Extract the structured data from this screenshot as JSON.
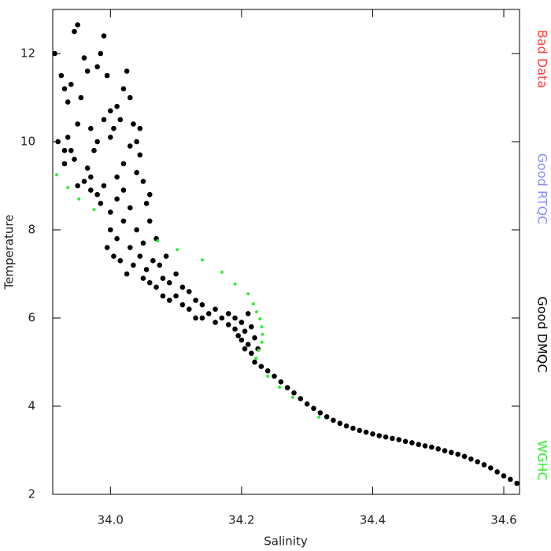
{
  "chart_data": {
    "type": "scatter",
    "x_label": "Salinity",
    "y_label": "Temperature",
    "xlim": [
      33.912,
      34.624
    ],
    "ylim": [
      2,
      13
    ],
    "xticks": [
      {
        "value": 34,
        "label": "34.0"
      },
      34.2,
      34.4,
      34.6
    ],
    "yticks": [
      2,
      4,
      6,
      8,
      10,
      12
    ],
    "series": [
      {
        "name": "Bad Data",
        "color": "#ff4040",
        "x": [],
        "y": []
      },
      {
        "name": "Good RTQC",
        "color": "#8c8cff",
        "x": [],
        "y": []
      },
      {
        "name": "Good DMQC",
        "color": "#000000",
        "x": [
          33.915,
          33.925,
          33.93,
          33.935,
          33.94,
          33.945,
          33.95,
          33.94,
          33.935,
          33.93,
          33.945,
          33.95,
          33.955,
          33.96,
          33.965,
          33.97,
          33.96,
          33.95,
          33.965,
          33.975,
          33.98,
          33.985,
          33.99,
          33.995,
          34.0,
          34.005,
          34.01,
          34.015,
          34.02,
          34.025,
          34.03,
          34.035,
          34.03,
          34.02,
          34.01,
          33.99,
          33.98,
          33.97,
          33.985,
          34.0,
          34.01,
          34.02,
          34.03,
          34.04,
          34.045,
          34.05,
          34.055,
          34.06,
          34.0,
          33.99,
          33.98,
          34.04,
          34.045,
          33.97,
          33.93,
          33.92,
          34.0,
          34.01,
          34.02,
          34.03,
          34.04,
          34.05,
          34.06,
          34.07,
          34.065,
          34.055,
          34.045,
          34.035,
          34.025,
          34.015,
          34.005,
          33.995,
          34.075,
          34.085,
          34.08,
          34.07,
          34.06,
          34.05,
          34.09,
          34.1,
          34.11,
          34.1,
          34.09,
          34.08,
          34.12,
          34.13,
          34.12,
          34.11,
          34.14,
          34.15,
          34.14,
          34.13,
          34.16,
          34.17,
          34.16,
          34.18,
          34.19,
          34.18,
          34.2,
          34.21,
          34.205,
          34.2,
          34.21,
          34.215,
          34.205,
          34.195,
          34.19,
          34.215,
          34.22,
          34.225,
          34.22,
          34.23,
          34.24,
          34.25,
          34.26,
          34.27,
          34.28,
          34.29,
          34.3,
          34.31,
          34.32,
          34.33,
          34.34,
          34.35,
          34.36,
          34.37,
          34.38,
          34.39,
          34.4,
          34.41,
          34.42,
          34.43,
          34.44,
          34.45,
          34.46,
          34.47,
          34.48,
          34.49,
          34.5,
          34.51,
          34.52,
          34.53,
          34.54,
          34.55,
          34.56,
          34.57,
          34.58,
          34.59,
          34.6,
          34.61,
          34.62
        ],
        "y": [
          12.0,
          11.5,
          11.2,
          10.9,
          11.3,
          12.5,
          12.65,
          9.8,
          10.1,
          9.5,
          9.6,
          10.4,
          11.0,
          11.9,
          11.6,
          10.3,
          9.1,
          9.0,
          9.4,
          9.8,
          11.7,
          12.0,
          12.4,
          11.5,
          10.7,
          10.3,
          10.8,
          10.5,
          11.2,
          11.6,
          11.0,
          10.4,
          9.9,
          9.5,
          9.2,
          9.0,
          8.8,
          8.9,
          8.6,
          8.4,
          8.7,
          8.9,
          8.5,
          9.3,
          9.7,
          9.1,
          8.6,
          8.8,
          10.1,
          10.5,
          10.0,
          10.0,
          10.3,
          9.2,
          9.8,
          10.0,
          8.0,
          7.8,
          8.2,
          7.6,
          8.0,
          7.7,
          8.2,
          7.8,
          7.3,
          7.1,
          7.4,
          7.2,
          7.0,
          7.3,
          7.4,
          7.6,
          7.2,
          7.4,
          6.9,
          6.7,
          6.8,
          6.9,
          6.8,
          7.0,
          6.7,
          6.5,
          6.4,
          6.5,
          6.6,
          6.4,
          6.2,
          6.3,
          6.3,
          6.1,
          6.0,
          6.0,
          6.2,
          6.0,
          5.9,
          6.1,
          6.0,
          5.85,
          5.9,
          6.1,
          5.7,
          5.5,
          5.4,
          5.2,
          5.3,
          5.6,
          5.75,
          5.8,
          5.55,
          5.3,
          5.0,
          4.9,
          4.8,
          4.68,
          4.55,
          4.42,
          4.3,
          4.17,
          4.05,
          3.95,
          3.85,
          3.76,
          3.68,
          3.61,
          3.55,
          3.5,
          3.45,
          3.41,
          3.37,
          3.33,
          3.3,
          3.27,
          3.24,
          3.2,
          3.17,
          3.13,
          3.1,
          3.07,
          3.03,
          2.99,
          2.95,
          2.91,
          2.86,
          2.8,
          2.74,
          2.67,
          2.6,
          2.51,
          2.42,
          2.34,
          2.25
        ]
      },
      {
        "name": "WGHC",
        "color": "#33ee33",
        "x": [
          33.918,
          33.935,
          33.952,
          33.975,
          34.072,
          34.102,
          34.14,
          34.17,
          34.19,
          34.21,
          34.218,
          34.223,
          34.228,
          34.231,
          34.232,
          34.231,
          34.226,
          34.222,
          34.24,
          34.258,
          34.278,
          34.318
        ],
        "y": [
          9.25,
          8.96,
          8.7,
          8.46,
          7.75,
          7.55,
          7.32,
          7.04,
          6.77,
          6.55,
          6.32,
          6.14,
          5.98,
          5.8,
          5.63,
          5.45,
          5.27,
          5.09,
          4.68,
          4.43,
          4.2,
          3.75
        ]
      }
    ]
  }
}
